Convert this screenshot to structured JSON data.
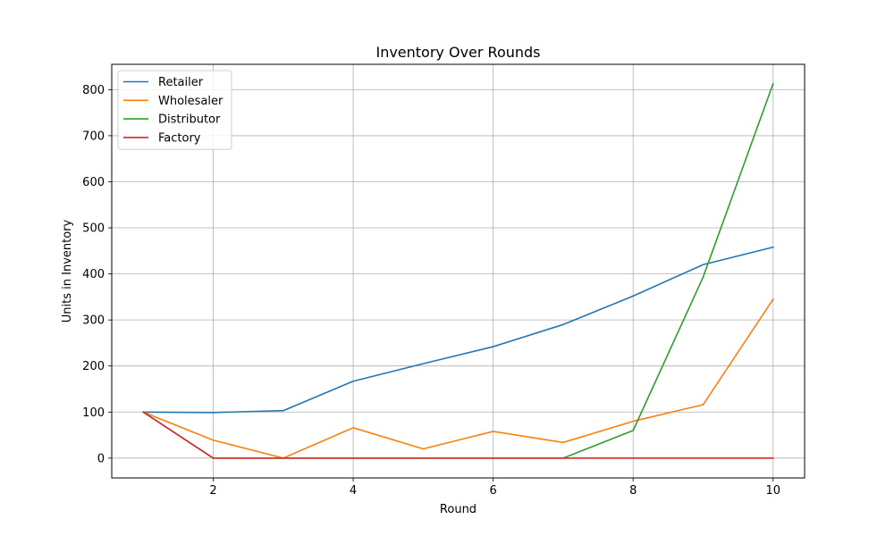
{
  "chart_data": {
    "type": "line",
    "title": "Inventory Over Rounds",
    "xlabel": "Round",
    "ylabel": "Units in Inventory",
    "x": [
      1,
      2,
      3,
      4,
      5,
      6,
      7,
      8,
      9,
      10
    ],
    "xlim": [
      0.55,
      10.45
    ],
    "ylim": [
      -43,
      855
    ],
    "xticks": [
      2,
      4,
      6,
      8,
      10
    ],
    "yticks": [
      0,
      100,
      200,
      300,
      400,
      500,
      600,
      700,
      800
    ],
    "grid": true,
    "legend_position": "top-left",
    "series": [
      {
        "name": "Retailer",
        "color": "#1f77b4",
        "values": [
          100,
          99,
          103,
          167,
          205,
          242,
          290,
          352,
          420,
          458
        ]
      },
      {
        "name": "Wholesaler",
        "color": "#ff7f0e",
        "values": [
          100,
          39,
          0,
          66,
          20,
          58,
          34,
          80,
          116,
          345
        ]
      },
      {
        "name": "Distributor",
        "color": "#2ca02c",
        "values": [
          100,
          0,
          0,
          0,
          0,
          0,
          0,
          60,
          393,
          813
        ]
      },
      {
        "name": "Factory",
        "color": "#d62728",
        "values": [
          100,
          0,
          0,
          0,
          0,
          0,
          0,
          0,
          0,
          0
        ]
      }
    ]
  }
}
